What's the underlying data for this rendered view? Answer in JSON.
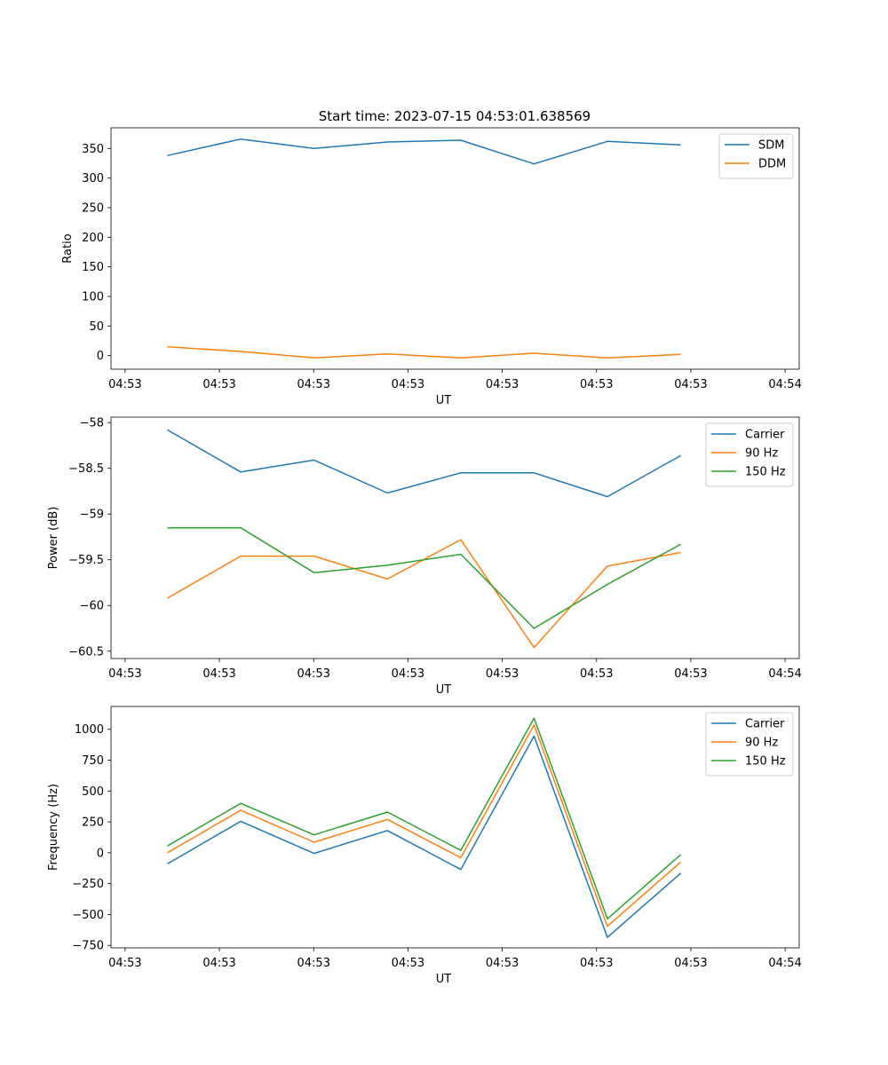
{
  "figure": {
    "title": "Start time: 2023-07-15 04:53:01.638569"
  },
  "colors": {
    "blue": "#1f77b4",
    "orange": "#ff7f0e",
    "green": "#2ca02c"
  },
  "chart_data": [
    {
      "type": "line",
      "xlabel": "UT",
      "ylabel": "Ratio",
      "x_tick_labels": [
        "04:53",
        "04:53",
        "04:53",
        "04:53",
        "04:53",
        "04:53",
        "04:53",
        "04:54"
      ],
      "xlim": [
        0,
        6.1
      ],
      "x": [
        0.5,
        1.15,
        1.8,
        2.45,
        3.1,
        3.75,
        4.4,
        5.05
      ],
      "ylim": [
        -23,
        385
      ],
      "yticks": [
        0,
        50,
        100,
        150,
        200,
        250,
        300,
        350
      ],
      "legend_position": "top-right",
      "series": [
        {
          "name": "SDM",
          "color": "#1f77b4",
          "values": [
            338,
            366,
            350,
            361,
            364,
            324,
            362,
            356
          ]
        },
        {
          "name": "DDM",
          "color": "#ff7f0e",
          "values": [
            15,
            7,
            -4,
            3,
            -4,
            4,
            -4,
            2
          ]
        }
      ]
    },
    {
      "type": "line",
      "xlabel": "UT",
      "ylabel": "Power (dB)",
      "x_tick_labels": [
        "04:53",
        "04:53",
        "04:53",
        "04:53",
        "04:53",
        "04:53",
        "04:53",
        "04:54"
      ],
      "xlim": [
        0,
        6.1
      ],
      "x": [
        0.5,
        1.15,
        1.8,
        2.45,
        3.1,
        3.75,
        4.4,
        5.05
      ],
      "ylim": [
        -60.58,
        -57.94
      ],
      "yticks": [
        -58.0,
        -58.5,
        -59.0,
        -59.5,
        -60.0,
        -60.5
      ],
      "legend_position": "top-right",
      "series": [
        {
          "name": "Carrier",
          "color": "#1f77b4",
          "values": [
            -58.08,
            -58.54,
            -58.41,
            -58.77,
            -58.55,
            -58.55,
            -58.81,
            -58.36
          ]
        },
        {
          "name": "90 Hz",
          "color": "#ff7f0e",
          "values": [
            -59.92,
            -59.46,
            -59.46,
            -59.71,
            -59.28,
            -60.46,
            -59.57,
            -59.42
          ]
        },
        {
          "name": "150 Hz",
          "color": "#2ca02c",
          "values": [
            -59.15,
            -59.15,
            -59.64,
            -59.56,
            -59.44,
            -60.25,
            -59.77,
            -59.33
          ]
        }
      ]
    },
    {
      "type": "line",
      "xlabel": "UT",
      "ylabel": "Frequency (Hz)",
      "x_tick_labels": [
        "04:53",
        "04:53",
        "04:53",
        "04:53",
        "04:53",
        "04:53",
        "04:53",
        "04:54"
      ],
      "xlim": [
        0,
        6.1
      ],
      "x": [
        0.5,
        1.15,
        1.8,
        2.45,
        3.1,
        3.75,
        4.4,
        5.05
      ],
      "ylim": [
        -770,
        1185
      ],
      "yticks": [
        1000,
        750,
        500,
        250,
        0,
        -250,
        -500,
        -750
      ],
      "legend_position": "top-right",
      "series": [
        {
          "name": "Carrier",
          "color": "#1f77b4",
          "values": [
            -90,
            255,
            -5,
            180,
            -135,
            945,
            -685,
            -165
          ]
        },
        {
          "name": "90 Hz",
          "color": "#ff7f0e",
          "values": [
            0,
            345,
            85,
            270,
            -40,
            1035,
            -595,
            -75
          ]
        },
        {
          "name": "150 Hz",
          "color": "#2ca02c",
          "values": [
            55,
            400,
            145,
            330,
            20,
            1090,
            -535,
            -15
          ]
        }
      ]
    }
  ]
}
